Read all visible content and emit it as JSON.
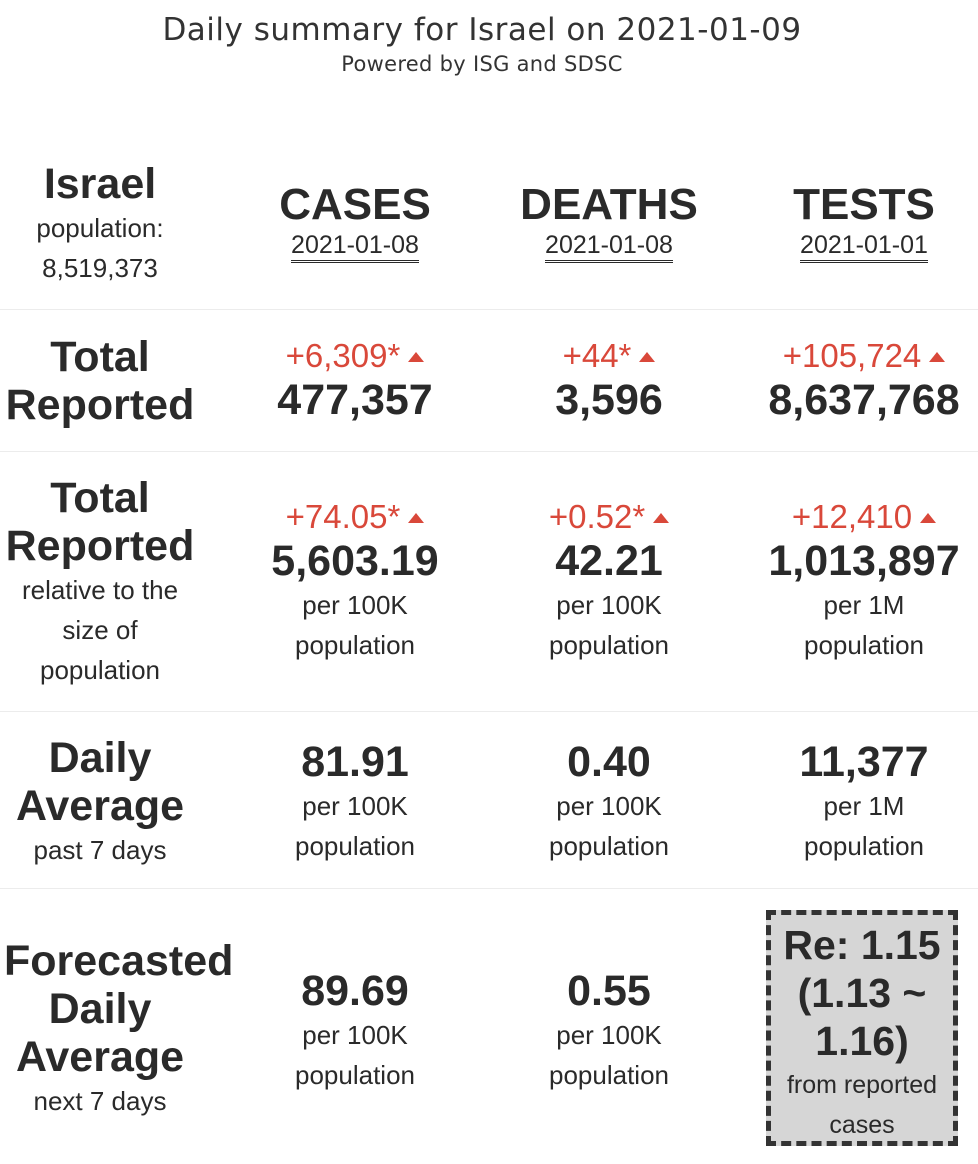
{
  "header": {
    "title": "Daily summary for Israel on 2021-01-09",
    "subtitle": "Powered by ISG and SDSC"
  },
  "location": {
    "name": "Israel",
    "population_label": "population:",
    "population": "8,519,373"
  },
  "columns": [
    {
      "name": "CASES",
      "date": "2021-01-08"
    },
    {
      "name": "DEATHS",
      "date": "2021-01-08"
    },
    {
      "name": "TESTS",
      "date": "2021-01-01"
    }
  ],
  "rows": {
    "total_reported": {
      "label_line1": "Total",
      "label_line2": "Reported",
      "cases": {
        "delta": "+6,309*",
        "value": "477,357"
      },
      "deaths": {
        "delta": "+44*",
        "value": "3,596"
      },
      "tests": {
        "delta": "+105,724",
        "value": "8,637,768"
      }
    },
    "relative": {
      "label_line1": "Total",
      "label_line2": "Reported",
      "sub1": "relative to the",
      "sub2": "size of",
      "sub3": "population",
      "cases": {
        "delta": "+74.05*",
        "value": "5,603.19",
        "unit1": "per 100K",
        "unit2": "population"
      },
      "deaths": {
        "delta": "+0.52*",
        "value": "42.21",
        "unit1": "per 100K",
        "unit2": "population"
      },
      "tests": {
        "delta": "+12,410",
        "value": "1,013,897",
        "unit1": "per 1M",
        "unit2": "population"
      }
    },
    "daily_average": {
      "label_line1": "Daily",
      "label_line2": "Average",
      "sub": "past 7 days",
      "cases": {
        "value": "81.91",
        "unit1": "per 100K",
        "unit2": "population"
      },
      "deaths": {
        "value": "0.40",
        "unit1": "per 100K",
        "unit2": "population"
      },
      "tests": {
        "value": "11,377",
        "unit1": "per 1M",
        "unit2": "population"
      }
    },
    "forecast": {
      "label_line1": "Forecasted",
      "label_line2": "Daily",
      "label_line3": "Average",
      "sub": "next 7 days",
      "cases": {
        "value": "89.69",
        "unit1": "per 100K",
        "unit2": "population"
      },
      "deaths": {
        "value": "0.55",
        "unit1": "per 100K",
        "unit2": "population"
      },
      "re": {
        "line1": "Re: 1.15",
        "line2": "(1.13 ~",
        "line3": "1.16)",
        "sub1": "from reported",
        "sub2": "cases"
      }
    }
  },
  "colors": {
    "increase": "#d9483a",
    "text": "#2a2a2a",
    "re_box_bg": "#d6d6d6"
  },
  "icons": {
    "increase": "triangle-up-icon"
  }
}
